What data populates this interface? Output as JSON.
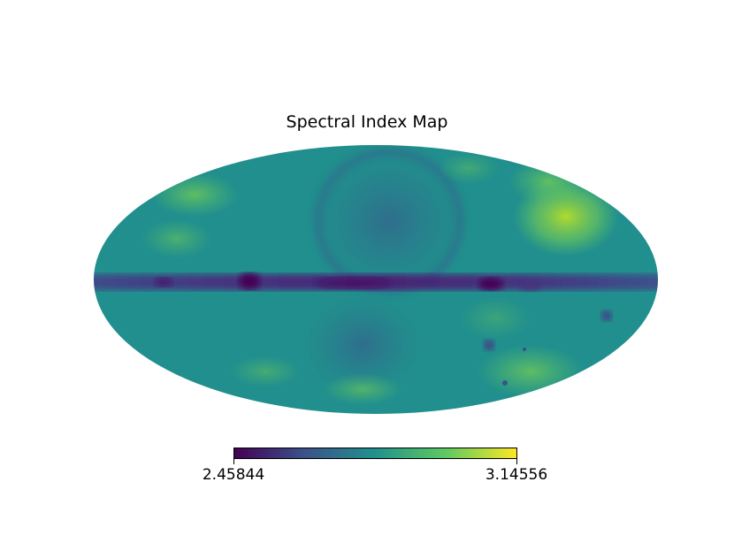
{
  "title": "Spectral Index Map",
  "projection": "mollweide",
  "colormap": {
    "name": "viridis",
    "stops": [
      "#440154",
      "#3b528b",
      "#21918c",
      "#5ec962",
      "#fde725"
    ]
  },
  "colorbar": {
    "min_label": "2.45844",
    "max_label": "3.14556",
    "min": 2.45844,
    "max": 3.14556
  },
  "regions": {
    "background": 0.48,
    "galactic_plane": 0.12,
    "northern_loop": 0.32,
    "bright_patches": 0.78
  }
}
